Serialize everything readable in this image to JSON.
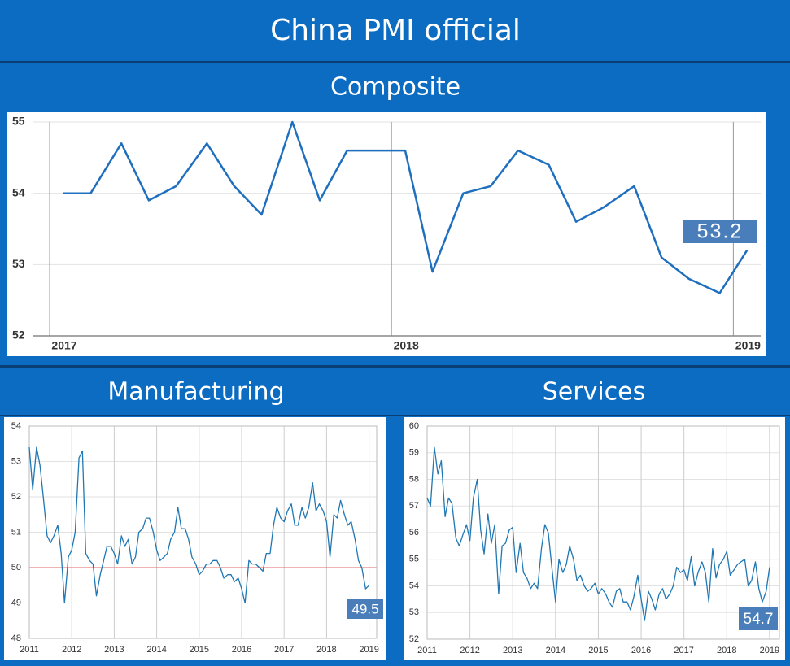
{
  "header": {
    "title": "China PMI official"
  },
  "chart_data": [
    {
      "type": "line",
      "title": "Composite",
      "color": "#1f6fbf",
      "grid": true,
      "annotation": "53.2",
      "x": [
        2017.04,
        2017.12,
        2017.21,
        2017.29,
        2017.37,
        2017.46,
        2017.54,
        2017.62,
        2017.71,
        2017.79,
        2017.87,
        2017.96,
        2018.04,
        2018.12,
        2018.21,
        2018.29,
        2018.37,
        2018.46,
        2018.54,
        2018.62,
        2018.71,
        2018.79,
        2018.87,
        2018.96,
        2019.04
      ],
      "values": [
        54.0,
        54.0,
        54.7,
        53.9,
        54.1,
        54.7,
        54.1,
        53.7,
        55.0,
        53.9,
        54.6,
        54.6,
        54.6,
        52.9,
        54.0,
        54.1,
        54.6,
        54.4,
        53.6,
        53.8,
        54.1,
        53.1,
        52.8,
        52.6,
        53.2
      ],
      "xlim": [
        2016.95,
        2019.08
      ],
      "xticks": [
        2017,
        2018,
        2019
      ],
      "ylim": [
        52,
        55
      ],
      "yticks": [
        52,
        53,
        54,
        55
      ]
    },
    {
      "type": "line",
      "title": "Manufacturing",
      "color": "#1f77b4",
      "grid": true,
      "annotation": "49.5",
      "reference_line": {
        "value": 50,
        "color": "#e06666"
      },
      "x": [
        2011.0,
        2011.08,
        2011.17,
        2011.25,
        2011.33,
        2011.42,
        2011.5,
        2011.58,
        2011.67,
        2011.75,
        2011.83,
        2011.92,
        2012.0,
        2012.08,
        2012.17,
        2012.25,
        2012.33,
        2012.42,
        2012.5,
        2012.58,
        2012.67,
        2012.75,
        2012.83,
        2012.92,
        2013.0,
        2013.08,
        2013.17,
        2013.25,
        2013.33,
        2013.42,
        2013.5,
        2013.58,
        2013.67,
        2013.75,
        2013.83,
        2013.92,
        2014.0,
        2014.08,
        2014.17,
        2014.25,
        2014.33,
        2014.42,
        2014.5,
        2014.58,
        2014.67,
        2014.75,
        2014.83,
        2014.92,
        2015.0,
        2015.08,
        2015.17,
        2015.25,
        2015.33,
        2015.42,
        2015.5,
        2015.58,
        2015.67,
        2015.75,
        2015.83,
        2015.92,
        2016.0,
        2016.08,
        2016.17,
        2016.25,
        2016.33,
        2016.42,
        2016.5,
        2016.58,
        2016.67,
        2016.75,
        2016.83,
        2016.92,
        2017.0,
        2017.08,
        2017.17,
        2017.25,
        2017.33,
        2017.42,
        2017.5,
        2017.58,
        2017.67,
        2017.75,
        2017.83,
        2017.92,
        2018.0,
        2018.08,
        2018.17,
        2018.25,
        2018.33,
        2018.42,
        2018.5,
        2018.58,
        2018.67,
        2018.75,
        2018.83,
        2018.92,
        2019.0
      ],
      "values": [
        53.4,
        52.2,
        53.4,
        52.9,
        52.0,
        50.9,
        50.7,
        50.9,
        51.2,
        50.4,
        49.0,
        50.3,
        50.5,
        51.0,
        53.1,
        53.3,
        50.4,
        50.2,
        50.1,
        49.2,
        49.8,
        50.2,
        50.6,
        50.6,
        50.4,
        50.1,
        50.9,
        50.6,
        50.8,
        50.1,
        50.3,
        51.0,
        51.1,
        51.4,
        51.4,
        51.0,
        50.5,
        50.2,
        50.3,
        50.4,
        50.8,
        51.0,
        51.7,
        51.1,
        51.1,
        50.8,
        50.3,
        50.1,
        49.8,
        49.9,
        50.1,
        50.1,
        50.2,
        50.2,
        50.0,
        49.7,
        49.8,
        49.8,
        49.6,
        49.7,
        49.4,
        49.0,
        50.2,
        50.1,
        50.1,
        50.0,
        49.9,
        50.4,
        50.4,
        51.2,
        51.7,
        51.4,
        51.3,
        51.6,
        51.8,
        51.2,
        51.2,
        51.7,
        51.4,
        51.7,
        52.4,
        51.6,
        51.8,
        51.6,
        51.3,
        50.3,
        51.5,
        51.4,
        51.9,
        51.5,
        51.2,
        51.3,
        50.8,
        50.2,
        50.0,
        49.4,
        49.5
      ],
      "xlim": [
        2011,
        2019.18
      ],
      "xticks": [
        2011,
        2012,
        2013,
        2014,
        2015,
        2016,
        2017,
        2018,
        2019
      ],
      "ylim": [
        48,
        54
      ],
      "yticks": [
        48,
        49,
        50,
        51,
        52,
        53,
        54
      ]
    },
    {
      "type": "line",
      "title": "Services",
      "color": "#1f77b4",
      "grid": true,
      "annotation": "54.7",
      "x": [
        2011.0,
        2011.08,
        2011.17,
        2011.25,
        2011.33,
        2011.42,
        2011.5,
        2011.58,
        2011.67,
        2011.75,
        2011.83,
        2011.92,
        2012.0,
        2012.08,
        2012.17,
        2012.25,
        2012.33,
        2012.42,
        2012.5,
        2012.58,
        2012.67,
        2012.75,
        2012.83,
        2012.92,
        2013.0,
        2013.08,
        2013.17,
        2013.25,
        2013.33,
        2013.42,
        2013.5,
        2013.58,
        2013.67,
        2013.75,
        2013.83,
        2013.92,
        2014.0,
        2014.08,
        2014.17,
        2014.25,
        2014.33,
        2014.42,
        2014.5,
        2014.58,
        2014.67,
        2014.75,
        2014.83,
        2014.92,
        2015.0,
        2015.08,
        2015.17,
        2015.25,
        2015.33,
        2015.42,
        2015.5,
        2015.58,
        2015.67,
        2015.75,
        2015.83,
        2015.92,
        2016.0,
        2016.08,
        2016.17,
        2016.25,
        2016.33,
        2016.42,
        2016.5,
        2016.58,
        2016.67,
        2016.75,
        2016.83,
        2016.92,
        2017.0,
        2017.08,
        2017.17,
        2017.25,
        2017.33,
        2017.42,
        2017.5,
        2017.58,
        2017.67,
        2017.75,
        2017.83,
        2017.92,
        2018.0,
        2018.08,
        2018.17,
        2018.25,
        2018.33,
        2018.42,
        2018.5,
        2018.58,
        2018.67,
        2018.75,
        2018.83,
        2018.92,
        2019.0
      ],
      "values": [
        57.3,
        57.0,
        59.2,
        58.2,
        58.7,
        56.6,
        57.3,
        57.1,
        55.8,
        55.5,
        55.9,
        56.3,
        55.7,
        57.3,
        58.0,
        56.1,
        55.2,
        56.7,
        55.6,
        56.3,
        53.7,
        55.5,
        55.6,
        56.1,
        56.2,
        54.5,
        55.6,
        54.5,
        54.3,
        53.9,
        54.1,
        53.9,
        55.4,
        56.3,
        56.0,
        54.6,
        53.4,
        55.0,
        54.5,
        54.8,
        55.5,
        55.0,
        54.2,
        54.4,
        54.0,
        53.8,
        53.9,
        54.1,
        53.7,
        53.9,
        53.7,
        53.4,
        53.2,
        53.8,
        53.9,
        53.4,
        53.4,
        53.1,
        53.6,
        54.4,
        53.5,
        52.7,
        53.8,
        53.5,
        53.1,
        53.7,
        53.9,
        53.5,
        53.7,
        54.0,
        54.7,
        54.5,
        54.6,
        54.2,
        55.1,
        54.0,
        54.5,
        54.9,
        54.5,
        53.4,
        55.4,
        54.3,
        54.8,
        55.0,
        55.3,
        54.4,
        54.6,
        54.8,
        54.9,
        55.0,
        54.0,
        54.2,
        54.9,
        53.9,
        53.4,
        53.8,
        54.7
      ],
      "xlim": [
        2011,
        2019.23
      ],
      "xticks": [
        2011,
        2012,
        2013,
        2014,
        2015,
        2016,
        2017,
        2018,
        2019
      ],
      "ylim": [
        52,
        60
      ],
      "yticks": [
        52,
        53,
        54,
        55,
        56,
        57,
        58,
        59,
        60
      ]
    }
  ]
}
